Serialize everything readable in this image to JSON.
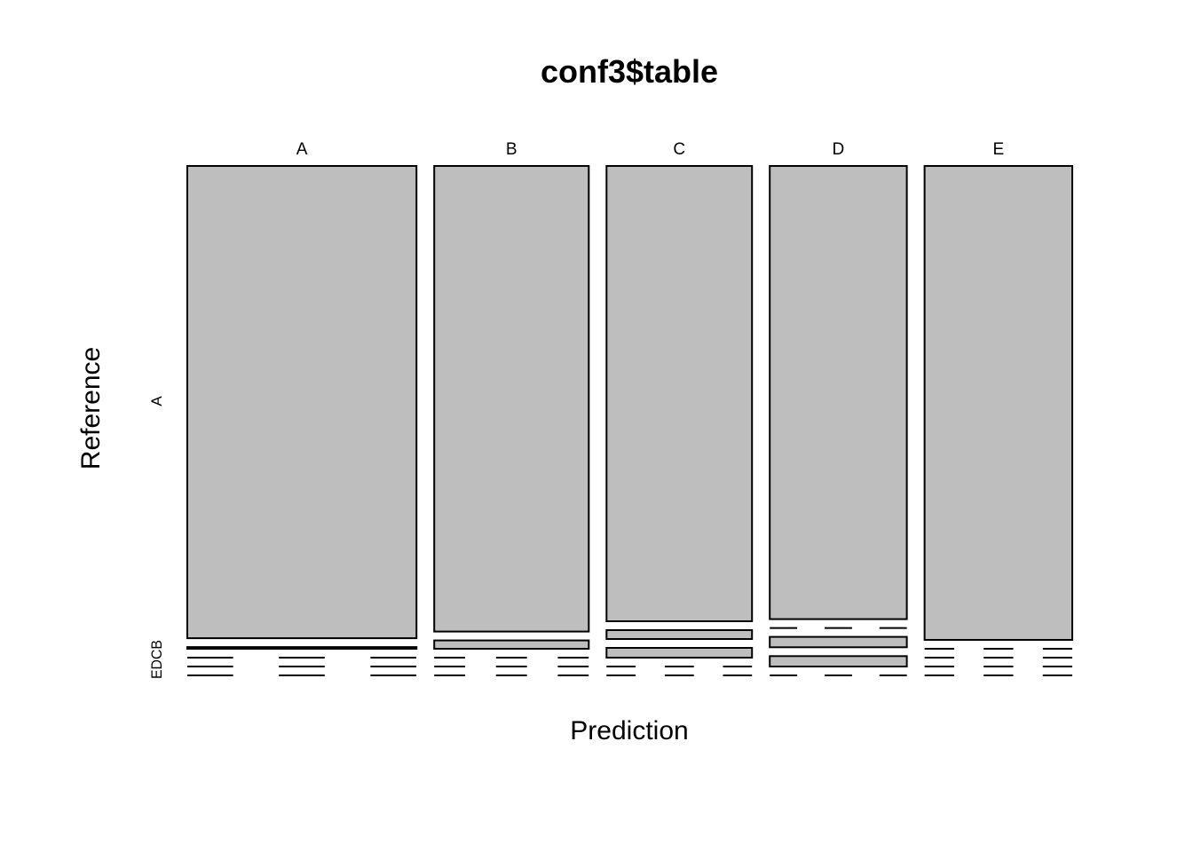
{
  "chart_data": {
    "type": "mosaic",
    "title": "conf3$table",
    "xlabel": "Prediction",
    "ylabel": "Reference",
    "prediction_levels": [
      "A",
      "B",
      "C",
      "D",
      "E"
    ],
    "reference_levels": [
      "A",
      "B",
      "C",
      "D",
      "E"
    ],
    "y_tick_labels": [
      "A",
      "EDCB"
    ],
    "fill_color": "#bebebe",
    "counts": [
      {
        "prediction": "A",
        "values": [
          1673,
          6,
          0,
          0,
          0
        ]
      },
      {
        "prediction": "B",
        "values": [
          1112,
          20,
          0,
          0,
          0
        ]
      },
      {
        "prediction": "C",
        "values": [
          1024,
          20,
          22,
          0,
          0
        ]
      },
      {
        "prediction": "D",
        "values": [
          960,
          0,
          22,
          22,
          0
        ]
      },
      {
        "prediction": "E",
        "values": [
          1082,
          0,
          0,
          0,
          0
        ]
      }
    ]
  }
}
